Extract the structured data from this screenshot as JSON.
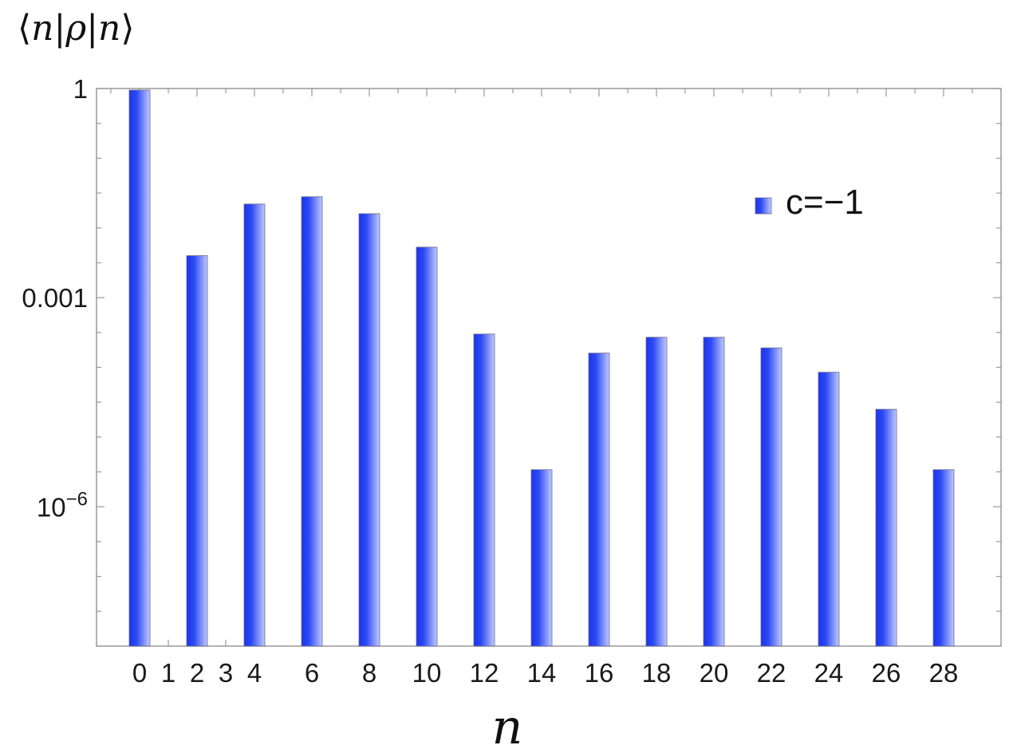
{
  "chart_data": {
    "type": "bar",
    "y_scale": "log",
    "ylabel": {
      "open": "⟨",
      "n1": "n",
      "bar1": "|",
      "rho": "ρ",
      "bar2": "|",
      "n2": "n",
      "close": "⟩"
    },
    "xlabel": "n",
    "ylim": [
      1e-08,
      1
    ],
    "xlim": [
      -1.5,
      30
    ],
    "y_ticks": [
      {
        "value": 1,
        "label": "1"
      },
      {
        "value": 0.001,
        "label": "0.001"
      },
      {
        "value": 1e-06,
        "label_base": "10",
        "label_exp": "−6"
      }
    ],
    "x_tick_labels": [
      "0",
      "1",
      "2",
      "3",
      "4",
      "6",
      "8",
      "10",
      "12",
      "14",
      "16",
      "18",
      "20",
      "22",
      "24",
      "26",
      "28"
    ],
    "series": [
      {
        "name": "c=−1",
        "color": "#1a35f0",
        "color_light": "#b4c0ff",
        "x": [
          0,
          2,
          4,
          6,
          8,
          10,
          12,
          14,
          16,
          18,
          20,
          22,
          24,
          26,
          28
        ],
        "values": [
          0.95,
          0.004,
          0.022,
          0.028,
          0.016,
          0.0053,
          0.0003,
          3.4e-06,
          0.00016,
          0.00027,
          0.00027,
          0.00019,
          8.5e-05,
          2.5e-05,
          3.4e-06
        ]
      }
    ],
    "legend": {
      "position": "top-right",
      "label": "c=−1"
    },
    "grid": false
  }
}
